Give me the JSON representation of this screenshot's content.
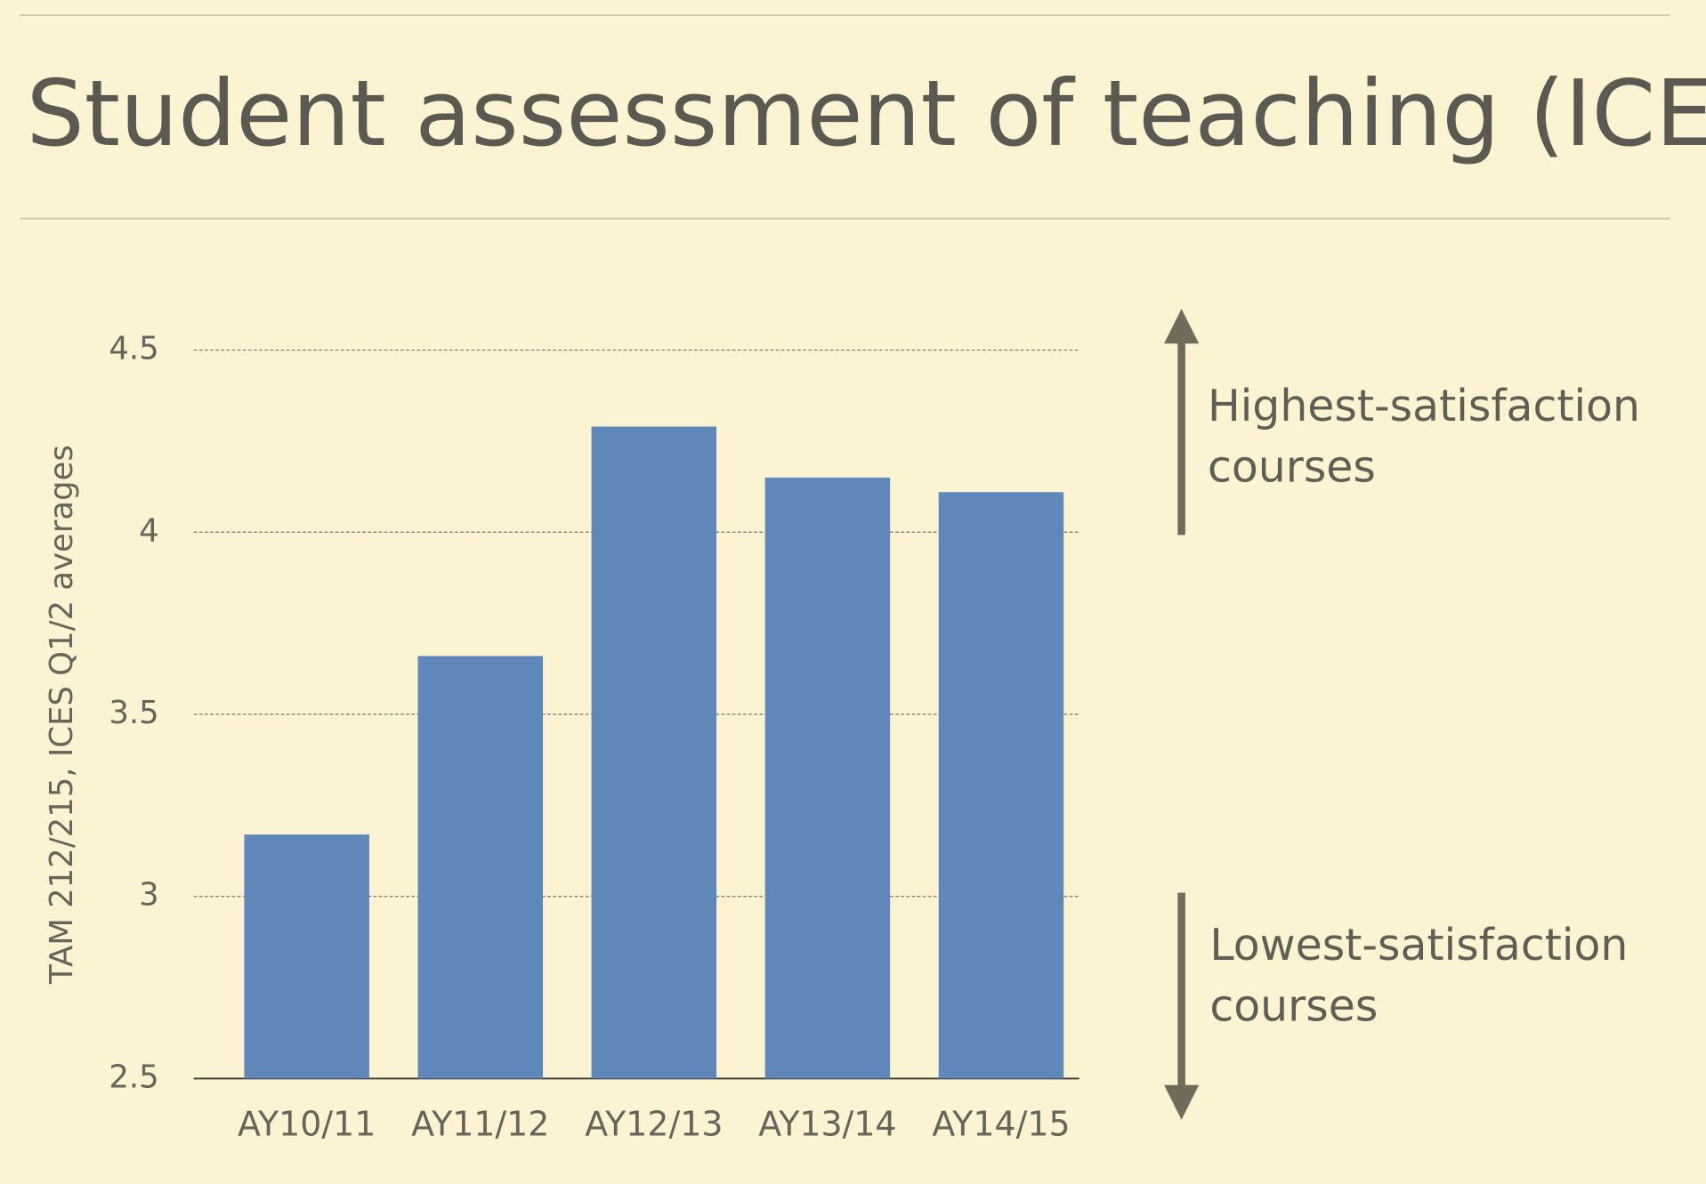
{
  "chart_data": {
    "type": "bar",
    "title": "Student assessment of teaching (ICES)",
    "y_label": "TAM 212/215, ICES Q1/2 averages",
    "categories": [
      "AY10/11",
      "AY11/12",
      "AY12/13",
      "AY13/14",
      "AY14/15"
    ],
    "values": [
      3.17,
      3.66,
      4.29,
      4.15,
      4.11
    ],
    "color": "#5f87ba",
    "ylim": [
      2.5,
      4.5
    ],
    "yticks": [
      2.5,
      3,
      3.5,
      4,
      4.5
    ],
    "grid": true,
    "annotations": [
      "Highest-satisfaction courses",
      "Lowest-satisfaction courses"
    ]
  }
}
